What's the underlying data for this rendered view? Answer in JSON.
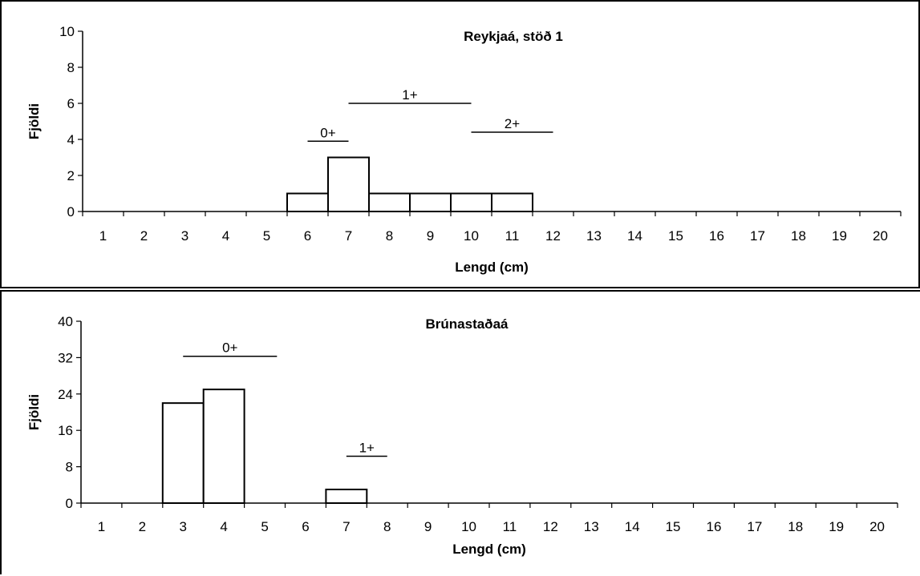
{
  "chart_data": [
    {
      "type": "bar",
      "title": "Reykjaá, stöð 1",
      "xlabel": "Lengd (cm)",
      "ylabel": "Fjöldi",
      "categories": [
        "1",
        "2",
        "3",
        "4",
        "5",
        "6",
        "7",
        "8",
        "9",
        "10",
        "11",
        "12",
        "13",
        "14",
        "15",
        "16",
        "17",
        "18",
        "19",
        "20"
      ],
      "values": [
        0,
        0,
        0,
        0,
        0,
        1,
        3,
        1,
        1,
        1,
        1,
        0,
        0,
        0,
        0,
        0,
        0,
        0,
        0,
        0
      ],
      "ylim": [
        0,
        10
      ],
      "yticks": [
        "0",
        "2",
        "4",
        "6",
        "8",
        "10"
      ],
      "grid": false,
      "annotations": [
        {
          "text": "0+",
          "from": 5.5,
          "to": 6.5,
          "y": 3.9
        },
        {
          "text": "1+",
          "from": 6.5,
          "to": 9.5,
          "y": 6.0
        },
        {
          "text": "2+",
          "from": 9.5,
          "to": 11.5,
          "y": 4.4
        }
      ]
    },
    {
      "type": "bar",
      "title": "Brúnastaðaá",
      "xlabel": "Lengd (cm)",
      "ylabel": "Fjöldi",
      "categories": [
        "1",
        "2",
        "3",
        "4",
        "5",
        "6",
        "7",
        "8",
        "9",
        "10",
        "11",
        "12",
        "13",
        "14",
        "15",
        "16",
        "17",
        "18",
        "19",
        "20"
      ],
      "values": [
        0,
        0,
        22,
        25,
        0,
        0,
        3,
        0,
        0,
        0,
        0,
        0,
        0,
        0,
        0,
        0,
        0,
        0,
        0,
        0
      ],
      "ylim": [
        0,
        40
      ],
      "yticks": [
        "0",
        "8",
        "16",
        "24",
        "32",
        "40"
      ],
      "grid": false,
      "annotations": [
        {
          "text": "0+",
          "from": 2.5,
          "to": 4.8,
          "y": 32.3
        },
        {
          "text": "1+",
          "from": 6.5,
          "to": 7.5,
          "y": 10.3
        }
      ]
    }
  ]
}
